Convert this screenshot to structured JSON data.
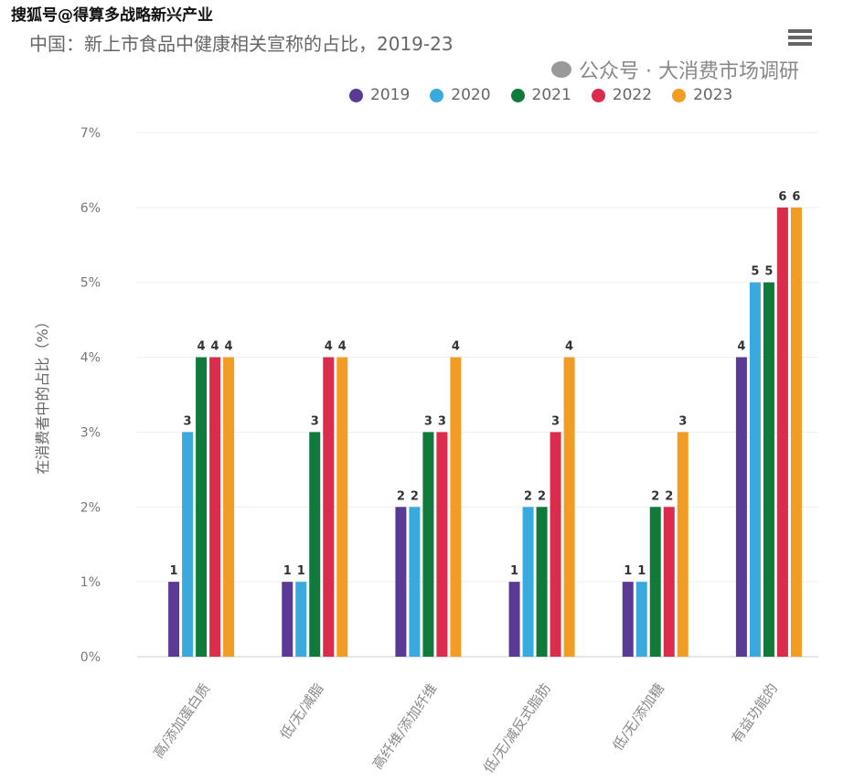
{
  "watermark_top": "搜狐号@得算多战略新兴产业",
  "watermark_bottom": "公众号 · 大消费市场调研",
  "menu_icon": "hamburger-menu-icon",
  "chart_data": {
    "type": "bar",
    "title": "中国：新上市食品中健康相关宣称的占比，2019-23",
    "ylabel": "在消费者中的占比（%）",
    "xlabel": "",
    "ylim": [
      0,
      7
    ],
    "yticks": [
      "0%",
      "1%",
      "2%",
      "3%",
      "4%",
      "5%",
      "6%",
      "7%"
    ],
    "grid": true,
    "legend_position": "top-right",
    "categories": [
      "高/添加蛋白质",
      "低/无/减脂",
      "高纤维/添加纤维",
      "低/无/减反式脂肪",
      "低/无/添加糖",
      "有益功能的"
    ],
    "series": [
      {
        "name": "2019",
        "color": "#5b3a96",
        "values": [
          1,
          1,
          2,
          1,
          1,
          4
        ]
      },
      {
        "name": "2020",
        "color": "#3aa9dd",
        "values": [
          3,
          1,
          2,
          2,
          1,
          5
        ]
      },
      {
        "name": "2021",
        "color": "#0f7a3a",
        "values": [
          4,
          3,
          3,
          2,
          2,
          5
        ]
      },
      {
        "name": "2022",
        "color": "#dc2c4d",
        "values": [
          4,
          4,
          3,
          3,
          2,
          6
        ]
      },
      {
        "name": "2023",
        "color": "#f39c24",
        "values": [
          4,
          4,
          4,
          4,
          3,
          6
        ]
      }
    ]
  }
}
